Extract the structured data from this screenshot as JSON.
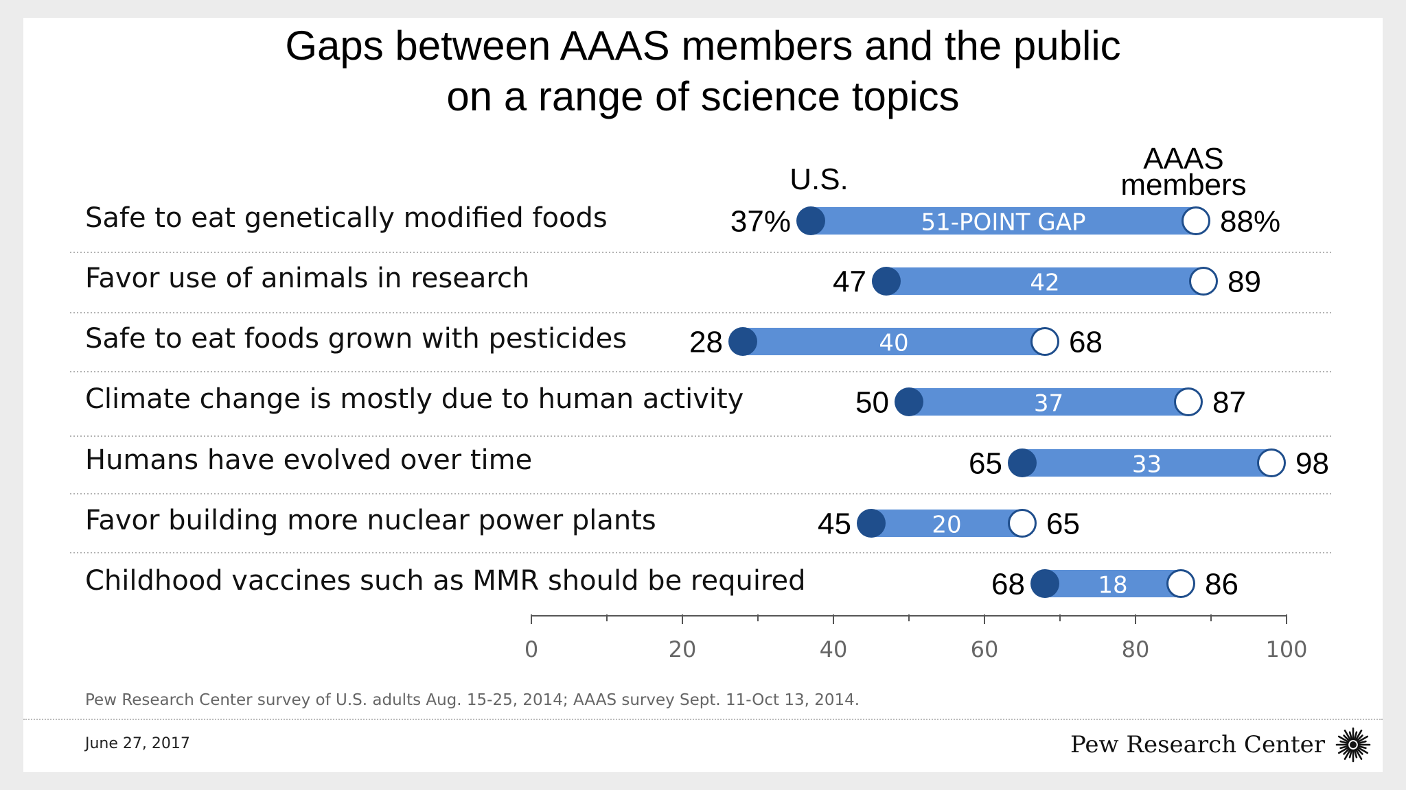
{
  "title": {
    "line1": "Gaps between AAAS members and the public",
    "line2": "on a range of science topics"
  },
  "chart_data": {
    "type": "dumbbell",
    "series_labels": {
      "us": "U.S.",
      "aaas": "AAAS members"
    },
    "gap_suffix": "-POINT GAP",
    "xlim": [
      0,
      100
    ],
    "xticks": [
      0,
      20,
      40,
      60,
      80,
      100
    ],
    "minor_ticks": [
      10,
      30,
      50,
      70,
      90
    ],
    "rows": [
      {
        "label": "Safe to eat genetically modified foods",
        "us": 37,
        "aaas": 88,
        "gap": 51,
        "us_text": "37%",
        "aaas_text": "88%",
        "gap_text": "51-POINT GAP"
      },
      {
        "label": "Favor use of animals in research",
        "us": 47,
        "aaas": 89,
        "gap": 42,
        "us_text": "47",
        "aaas_text": "89",
        "gap_text": "42"
      },
      {
        "label": "Safe to eat foods grown with pesticides",
        "us": 28,
        "aaas": 68,
        "gap": 40,
        "us_text": "28",
        "aaas_text": "68",
        "gap_text": "40"
      },
      {
        "label": "Climate change is mostly due to human activity",
        "us": 50,
        "aaas": 87,
        "gap": 37,
        "us_text": "50",
        "aaas_text": "87",
        "gap_text": "37"
      },
      {
        "label": "Humans have evolved over time",
        "us": 65,
        "aaas": 98,
        "gap": 33,
        "us_text": "65",
        "aaas_text": "98",
        "gap_text": "33"
      },
      {
        "label": "Favor building more nuclear power plants",
        "us": 45,
        "aaas": 65,
        "gap": 20,
        "us_text": "45",
        "aaas_text": "65",
        "gap_text": "20"
      },
      {
        "label": "Childhood vaccines such as MMR should be required",
        "us": 68,
        "aaas": 86,
        "gap": 18,
        "us_text": "68",
        "aaas_text": "86",
        "gap_text": "18"
      }
    ],
    "colors": {
      "bar": "#5b8fd6",
      "us_dot": "#1f4e8c",
      "aaas_dot": "#ffffff",
      "aaas_stroke": "#1f4e8c",
      "gap_text": "#ffffff",
      "axis": "#555555"
    }
  },
  "footnote": "Pew Research Center survey of U.S. adults Aug. 15-25, 2014; AAAS survey Sept. 11-Oct 13, 2014.",
  "date": "June 27, 2017",
  "logo": {
    "text": "Pew Research Center",
    "icon": "pew-sunburst-icon"
  }
}
